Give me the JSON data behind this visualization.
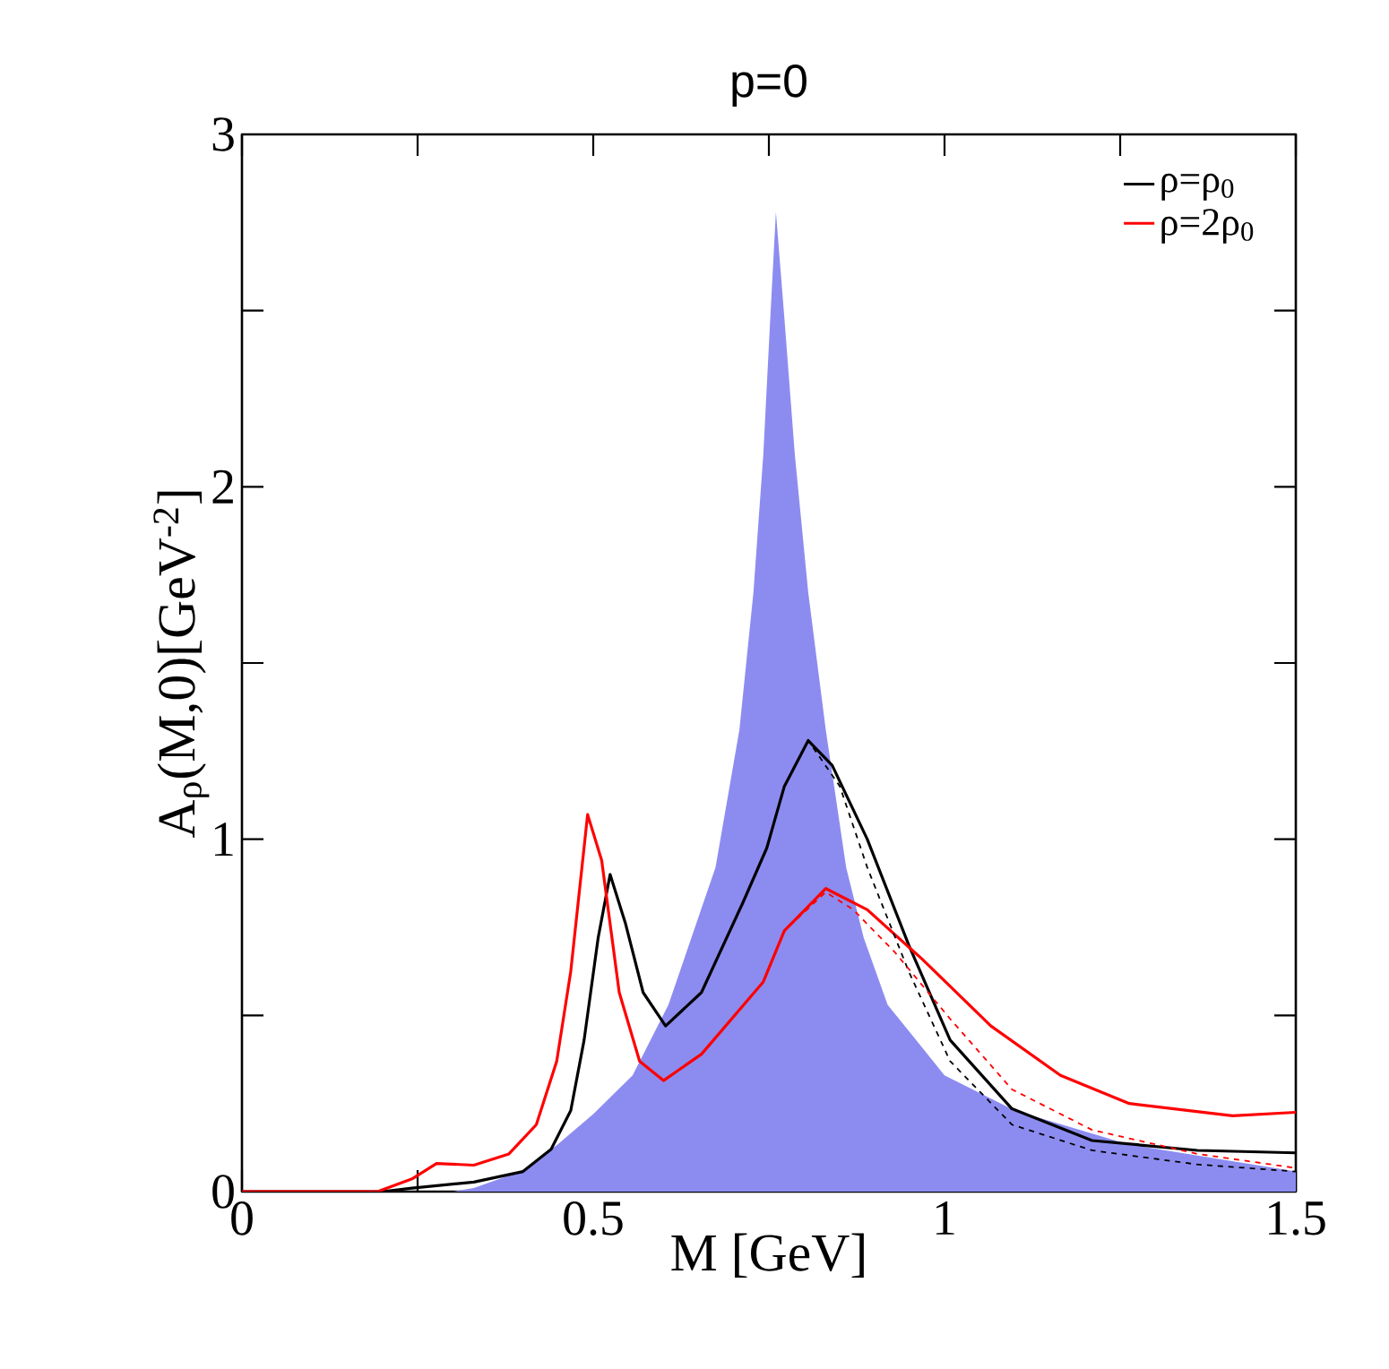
{
  "chart_data": {
    "type": "line",
    "title": "p=0",
    "xlabel": "M [GeV]",
    "ylabel": "A$_{ρ}$(M,0)[GeV$^{-2}$]",
    "xlim": [
      0,
      1.5
    ],
    "ylim": [
      0,
      3
    ],
    "xticks": [
      0,
      {
        "value": 0.25,
        "label": null
      },
      0.5,
      {
        "value": 0.75,
        "label": null
      },
      1,
      {
        "value": 1.25,
        "label": null
      },
      1.5
    ],
    "yticks": [
      0,
      {
        "value": 0.5,
        "label": null
      },
      1,
      {
        "value": 1.5,
        "label": null
      },
      2,
      {
        "value": 2.5,
        "label": null
      },
      3
    ],
    "legend": "top right",
    "marker": "none",
    "grid": false,
    "series": [
      {
        "type": "area",
        "color": "#8c8cf0",
        "x": [
          0.3,
          0.33,
          0.4,
          0.45,
          0.5,
          0.556,
          0.607,
          0.674,
          0.708,
          0.728,
          0.742,
          0.752,
          0.76,
          0.772,
          0.787,
          0.806,
          0.831,
          0.86,
          0.885,
          0.919,
          1.0,
          1.1,
          1.26,
          1.5
        ],
        "values": [
          0,
          0.01,
          0.06,
          0.135,
          0.22,
          0.33,
          0.53,
          0.92,
          1.31,
          1.7,
          2.09,
          2.48,
          2.78,
          2.48,
          2.09,
          1.7,
          1.31,
          0.92,
          0.72,
          0.53,
          0.33,
          0.23,
          0.135,
          0.057
        ]
      },
      {
        "name": "ρ=ρ$_{0}$",
        "color": "#000000",
        "line_style": "solid",
        "x": [
          0,
          0.2,
          0.242,
          0.33,
          0.4,
          0.44,
          0.468,
          0.487,
          0.507,
          0.524,
          0.546,
          0.571,
          0.603,
          0.654,
          0.713,
          0.747,
          0.772,
          0.806,
          0.84,
          0.89,
          0.949,
          1.008,
          1.096,
          1.21,
          1.36,
          1.5
        ],
        "values": [
          0,
          0,
          0.01,
          0.027,
          0.057,
          0.12,
          0.23,
          0.43,
          0.72,
          0.9,
          0.76,
          0.565,
          0.47,
          0.565,
          0.82,
          0.975,
          1.15,
          1.28,
          1.21,
          1.0,
          0.7,
          0.43,
          0.235,
          0.145,
          0.117,
          0.11
        ]
      },
      {
        "name": "ρ=2ρ$_{0}$",
        "color": "#ff0000",
        "line_style": "solid",
        "x": [
          0,
          0.193,
          0.243,
          0.277,
          0.33,
          0.38,
          0.419,
          0.448,
          0.468,
          0.492,
          0.512,
          0.537,
          0.566,
          0.6,
          0.654,
          0.742,
          0.772,
          0.831,
          0.89,
          0.968,
          1.066,
          1.165,
          1.263,
          1.41,
          1.5
        ],
        "values": [
          0,
          0,
          0.037,
          0.08,
          0.075,
          0.107,
          0.19,
          0.37,
          0.625,
          1.07,
          0.94,
          0.565,
          0.37,
          0.315,
          0.39,
          0.595,
          0.74,
          0.86,
          0.8,
          0.66,
          0.47,
          0.33,
          0.25,
          0.215,
          0.225
        ]
      },
      {
        "color": "#000000",
        "line_style": "dashed",
        "x": [
          0.603,
          0.654,
          0.713,
          0.747,
          0.772,
          0.806,
          0.851,
          0.89,
          0.949,
          1.008,
          1.096,
          1.21,
          1.36,
          1.5
        ],
        "values": [
          0.47,
          0.565,
          0.82,
          0.975,
          1.15,
          1.28,
          1.15,
          0.92,
          0.625,
          0.37,
          0.19,
          0.117,
          0.077,
          0.057
        ]
      },
      {
        "color": "#ff0000",
        "line_style": "dashed",
        "x": [
          0.6,
          0.654,
          0.742,
          0.772,
          0.831,
          0.87,
          0.929,
          1.008,
          1.096,
          1.21,
          1.36,
          1.5
        ],
        "values": [
          0.315,
          0.39,
          0.595,
          0.74,
          0.85,
          0.8,
          0.68,
          0.49,
          0.29,
          0.175,
          0.107,
          0.067
        ]
      }
    ]
  }
}
